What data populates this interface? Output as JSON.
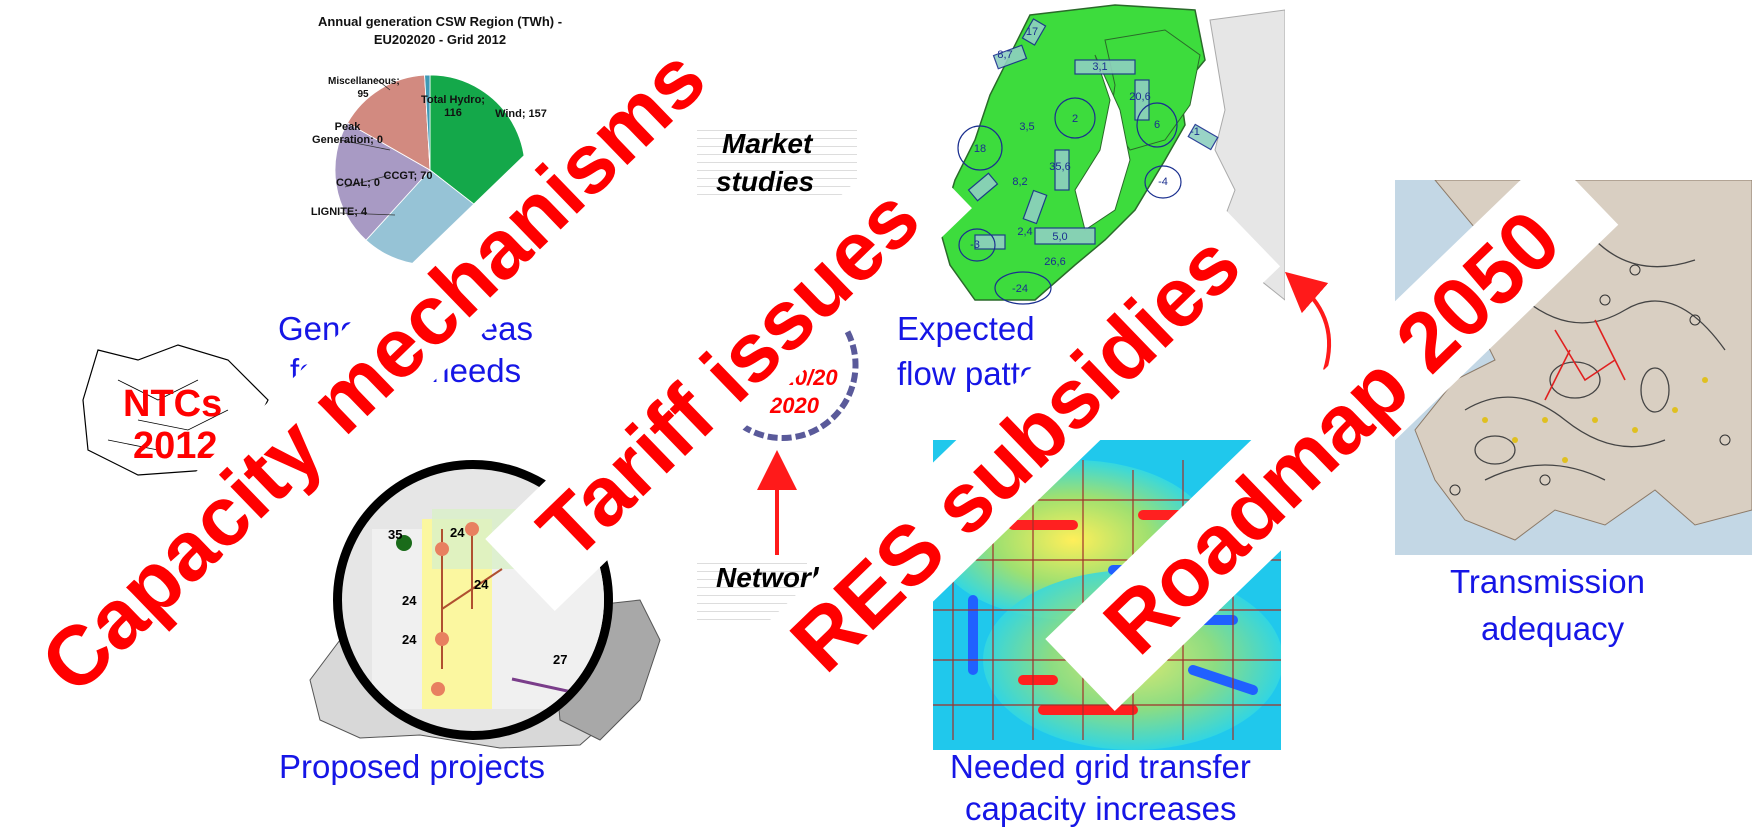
{
  "pie_chart": {
    "title_line1": "Annual generation CSW Region (TWh) -",
    "title_line2": "EU202020 - Grid 2012",
    "labels": {
      "wind": "Wind; 157",
      "hydro": "Total Hydro; 116",
      "misc": "Miscellaneous; 95",
      "peak": "Peak Generation; 0",
      "ccgt": "CCGT; 70",
      "coal": "COAL; 0",
      "lignite": "LIGNITE; 4"
    }
  },
  "chart_data": {
    "type": "pie",
    "title": "Annual generation CSW Region (TWh) - EU202020 - Grid 2012",
    "categories": [
      "Wind",
      "Total Hydro",
      "Miscellaneous",
      "Peak Generation",
      "CCGT",
      "COAL",
      "LIGNITE"
    ],
    "values": [
      157,
      116,
      95,
      0,
      70,
      0,
      4
    ],
    "colors": [
      "#14a84a",
      "#96c3d6",
      "#a89ac4",
      "#e0b08a",
      "#d28a80",
      "#cc3333",
      "#3f9ab5"
    ]
  },
  "captions": {
    "generation_line1": "Generation areas",
    "generation_line2": "for future needs",
    "expected_line1": "Expected",
    "expected_line2": "flow patterns",
    "transmission_line1": "Transmission",
    "transmission_line2": "adequacy",
    "proposed": "Proposed projects",
    "needed_line1": "Needed grid transfer",
    "needed_line2": "capacity increases"
  },
  "center": {
    "market_line1": "Market",
    "market_line2": "studies",
    "cycle_line1": "20/20/20",
    "cycle_line2": "2020",
    "network": "Network"
  },
  "ntc": {
    "line1": "NTCs",
    "line2": "2012"
  },
  "projects_map": {
    "numbers": [
      "35",
      "24",
      "24",
      "24",
      "24",
      "27"
    ]
  },
  "flow_map": {
    "values": [
      "17",
      "8,7",
      "3,1",
      "20,6",
      "2",
      "6",
      "18",
      "3,5",
      "8,2",
      "35,6",
      "-4",
      "2,4",
      "5,0",
      "-3",
      "26,6",
      "-24",
      "-1"
    ]
  },
  "banners": {
    "capacity": "Capacity mechanisms",
    "tariff": "Tariff issues",
    "res": "RES subsidies",
    "roadmap": "Roadmap 2050"
  },
  "colors": {
    "banner_text": "#ff0000",
    "caption_text": "#1616e6",
    "map_green": "#3ddc3d",
    "arrow_red": "#ff1a1a"
  }
}
